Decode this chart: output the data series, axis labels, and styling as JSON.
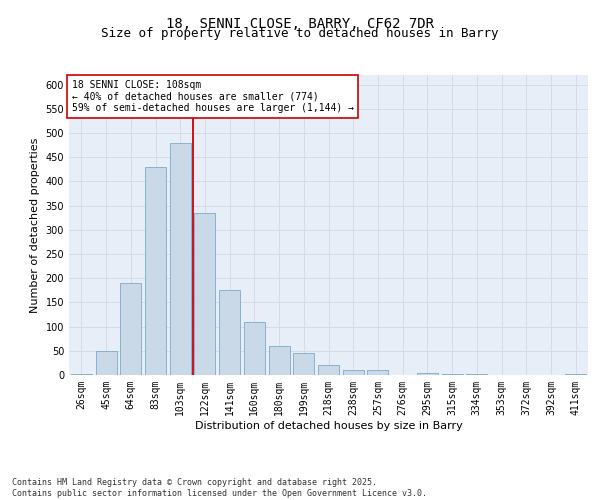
{
  "title_line1": "18, SENNI CLOSE, BARRY, CF62 7DR",
  "title_line2": "Size of property relative to detached houses in Barry",
  "xlabel": "Distribution of detached houses by size in Barry",
  "ylabel": "Number of detached properties",
  "categories": [
    "26sqm",
    "45sqm",
    "64sqm",
    "83sqm",
    "103sqm",
    "122sqm",
    "141sqm",
    "160sqm",
    "180sqm",
    "199sqm",
    "218sqm",
    "238sqm",
    "257sqm",
    "276sqm",
    "295sqm",
    "315sqm",
    "334sqm",
    "353sqm",
    "372sqm",
    "392sqm",
    "411sqm"
  ],
  "values": [
    2,
    50,
    190,
    430,
    480,
    335,
    175,
    110,
    60,
    45,
    20,
    10,
    10,
    1,
    5,
    3,
    2,
    1,
    1,
    0,
    2
  ],
  "bar_color": "#c9d9e8",
  "bar_edge_color": "#7aaac8",
  "vline_x": 4.5,
  "vline_color": "#cc0000",
  "annotation_text": "18 SENNI CLOSE: 108sqm\n← 40% of detached houses are smaller (774)\n59% of semi-detached houses are larger (1,144) →",
  "annotation_box_color": "#ffffff",
  "annotation_box_edge": "#cc0000",
  "ylim": [
    0,
    620
  ],
  "yticks": [
    0,
    50,
    100,
    150,
    200,
    250,
    300,
    350,
    400,
    450,
    500,
    550,
    600
  ],
  "grid_color": "#d0d8e8",
  "bg_color": "#e8eef8",
  "footer_text": "Contains HM Land Registry data © Crown copyright and database right 2025.\nContains public sector information licensed under the Open Government Licence v3.0.",
  "title_fontsize": 10,
  "title2_fontsize": 9,
  "axis_label_fontsize": 8,
  "tick_fontsize": 7,
  "annotation_fontsize": 7,
  "footer_fontsize": 6
}
